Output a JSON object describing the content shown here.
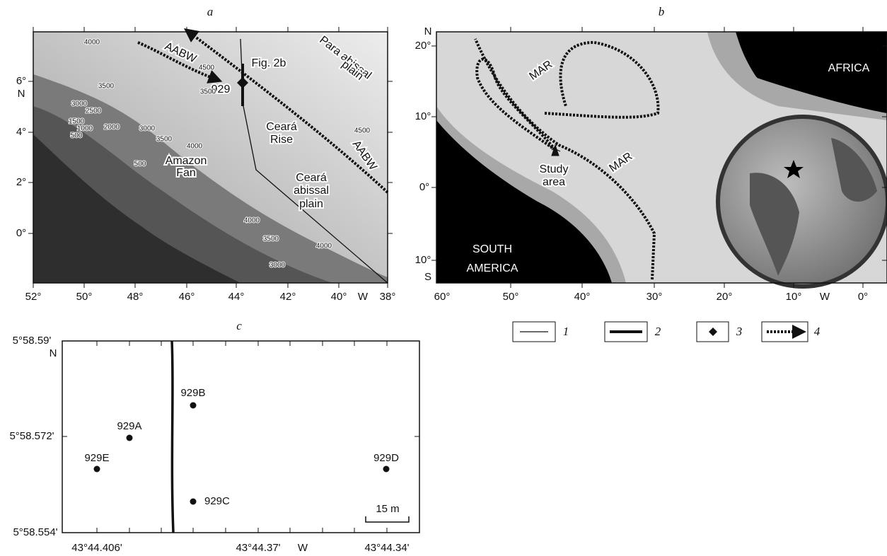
{
  "panel_a": {
    "letter": "a",
    "x_ticks": [
      "52°",
      "50°",
      "48°",
      "46°",
      "44°",
      "42°",
      "40°",
      "W",
      "38°"
    ],
    "y_ticks": [
      "6°",
      "N",
      "4°",
      "2°",
      "0°"
    ],
    "labels": [
      "AABW",
      "Para abissal",
      "plain",
      "Fig. 2b",
      "929",
      "Ceará",
      "Rise",
      "Amazon",
      "Fan",
      "Ceará",
      "abissal",
      "plain",
      "AABW"
    ],
    "contours": [
      "4000",
      "3500",
      "3000",
      "2500",
      "1500",
      "1000",
      "500",
      "2000",
      "3000",
      "3500",
      "4000",
      "500",
      "4000",
      "3500",
      "3000",
      "4000",
      "4500",
      "3500",
      "4500"
    ]
  },
  "panel_b": {
    "letter": "b",
    "x_ticks": [
      "60°",
      "50°",
      "40°",
      "30°",
      "20°",
      "10°",
      "W",
      "0°"
    ],
    "y_ticks": [
      "N",
      "20°",
      "10°",
      "0°",
      "10°",
      "S"
    ],
    "labels": [
      "MAR",
      "MAR",
      "AFRICA",
      "SOUTH",
      "AMERICA",
      "Study",
      "area"
    ]
  },
  "legend": [
    "1",
    "2",
    "3",
    "4"
  ],
  "panel_c": {
    "letter": "c",
    "y_ticks": [
      "5°58.59'",
      "N",
      "5°58.572'",
      "5°58.554'"
    ],
    "x_ticks": [
      "43°44.406'",
      "43°44.37'",
      "W",
      "43°44.34'"
    ],
    "sites": [
      "929A",
      "929B",
      "929C",
      "929D",
      "929E"
    ],
    "scale": "15 m"
  }
}
